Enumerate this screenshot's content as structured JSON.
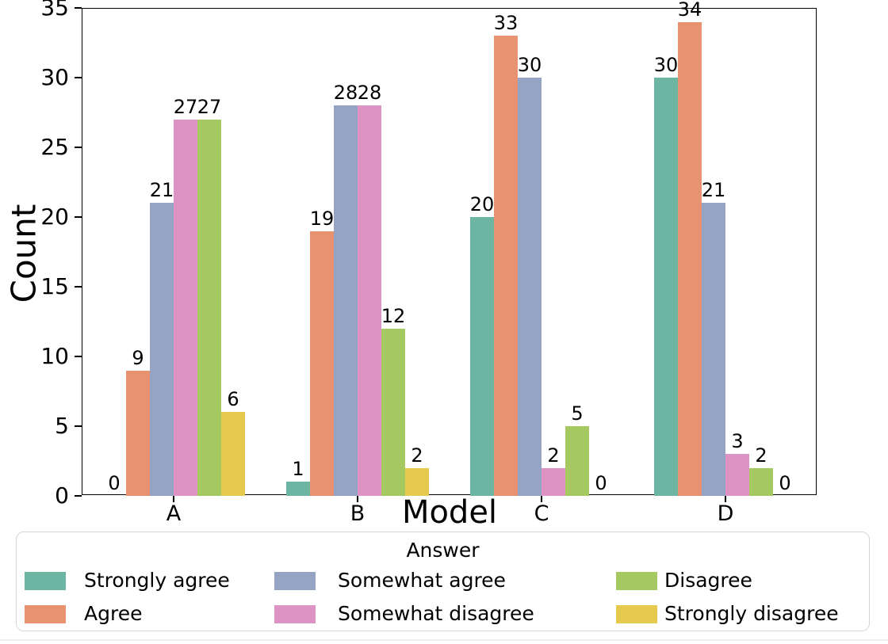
{
  "chart_data": {
    "type": "bar",
    "grouping": "grouped",
    "title": "",
    "xlabel": "Model",
    "ylabel": "Count",
    "categories": [
      "A",
      "B",
      "C",
      "D"
    ],
    "series": [
      {
        "name": "Strongly agree",
        "color": "#6cb5a2",
        "values": [
          0,
          1,
          20,
          30
        ]
      },
      {
        "name": "Agree",
        "color": "#e9926f",
        "values": [
          9,
          19,
          33,
          34
        ]
      },
      {
        "name": "Somewhat agree",
        "color": "#95a3c5",
        "values": [
          21,
          28,
          30,
          21
        ]
      },
      {
        "name": "Somewhat disagree",
        "color": "#dd94c4",
        "values": [
          27,
          28,
          2,
          3
        ]
      },
      {
        "name": "Disagree",
        "color": "#a5c861",
        "values": [
          27,
          12,
          5,
          2
        ]
      },
      {
        "name": "Strongly disagree",
        "color": "#e5ca4e",
        "values": [
          6,
          2,
          0,
          0
        ]
      }
    ],
    "ylim": [
      0,
      35
    ],
    "yticks": [
      0,
      5,
      10,
      15,
      20,
      25,
      30,
      35
    ],
    "bar_value_labels": true,
    "grid": false,
    "legend": {
      "title": "Answer",
      "position": "bottom",
      "ncol": 3,
      "entry_order_column_major": [
        [
          "Strongly agree",
          "Agree"
        ],
        [
          "Somewhat agree",
          "Somewhat disagree"
        ],
        [
          "Disagree",
          "Strongly disagree"
        ]
      ]
    },
    "style": {
      "background": "#ffffff",
      "spine_color": "#000000",
      "legend_border_color": "#d6d6d6"
    }
  }
}
